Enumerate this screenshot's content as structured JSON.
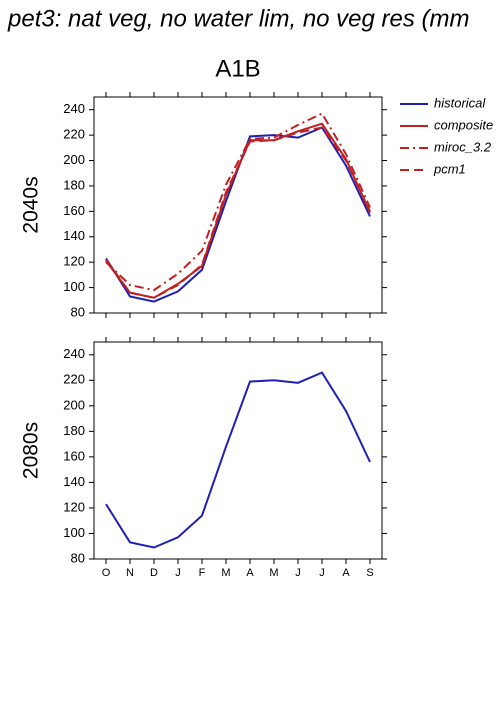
{
  "title": "pet3: nat veg, no water lim, no veg res (mm",
  "chart_data": [
    {
      "type": "line",
      "title": "A1B",
      "ylabel": "2040s",
      "categories": [
        null,
        null,
        null,
        null,
        null,
        null,
        null,
        null,
        null,
        null,
        null,
        null
      ],
      "ylim": [
        80,
        250
      ],
      "yticks": [
        80,
        100,
        120,
        140,
        160,
        180,
        200,
        220,
        240
      ],
      "legend": "right",
      "series": [
        {
          "name": "historical",
          "color": "#1f1fb4",
          "dash": "solid",
          "values": [
            123,
            93,
            89,
            97,
            114,
            168,
            219,
            220,
            218,
            226,
            196,
            156
          ]
        },
        {
          "name": "composite",
          "color": "#c02020",
          "dash": "solid",
          "values": [
            121,
            96,
            92,
            103,
            117,
            173,
            216,
            216,
            223,
            229,
            201,
            159
          ]
        },
        {
          "name": "miroc_3.2",
          "color": "#c02020",
          "dash": "dashdot",
          "values": [
            120,
            102,
            98,
            111,
            129,
            181,
            217,
            218,
            228,
            237,
            205,
            163
          ]
        },
        {
          "name": "pcm1",
          "color": "#c02020",
          "dash": "dashed",
          "values": [
            122,
            96,
            92,
            102,
            118,
            175,
            215,
            216,
            222,
            226,
            200,
            160
          ]
        }
      ]
    },
    {
      "type": "line",
      "ylabel": "2080s",
      "categories": [
        "O",
        "N",
        "D",
        "J",
        "F",
        "M",
        "A",
        "M",
        "J",
        "J",
        "A",
        "S"
      ],
      "ylim": [
        80,
        250
      ],
      "yticks": [
        80,
        100,
        120,
        140,
        160,
        180,
        200,
        220,
        240
      ],
      "series": [
        {
          "color": "#1f1fb4",
          "dash": "solid",
          "values": [
            123,
            93,
            89,
            97,
            114,
            168,
            219,
            220,
            218,
            226,
            196,
            156
          ]
        }
      ]
    }
  ]
}
